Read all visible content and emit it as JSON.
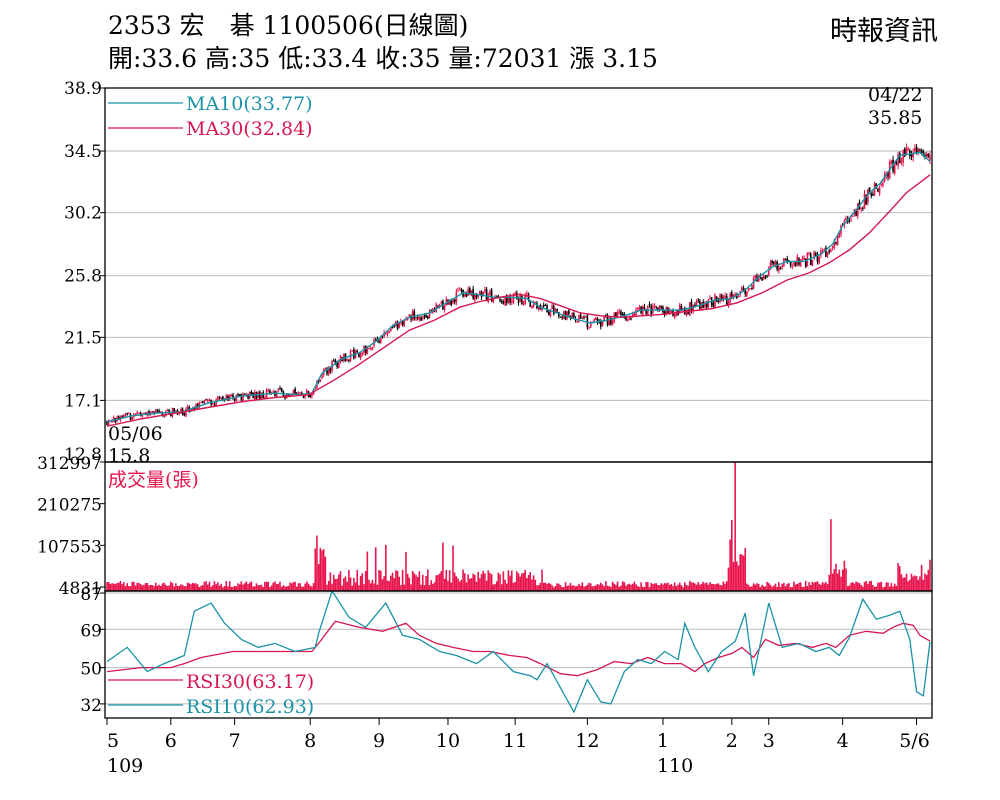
{
  "header": {
    "title": "2353  宏　碁 1100506(日線圖)",
    "ohlc": "開:33.6 高:35 低:33.4 收:35 量:72031 漲 3.15",
    "source": "時報資訊"
  },
  "colors": {
    "up": "#e8154d",
    "down": "#000000",
    "ma10": "#1a93a6",
    "ma30": "#d6174f",
    "grid": "#bbbbbb",
    "volume": "#e8154d"
  },
  "chart_data": [
    {
      "type": "candlestick",
      "panel": "price",
      "ylim": [
        12.8,
        38.9
      ],
      "yticks": [
        "38.9",
        "34.5",
        "30.2",
        "25.8",
        "21.5",
        "17.1",
        "12.8"
      ],
      "ma": [
        {
          "name": "MA10",
          "label": "MA10(33.77)",
          "color": "#1a93a6",
          "points": [
            [
              0,
              15.6
            ],
            [
              14,
              16.0
            ],
            [
              28,
              16.2
            ],
            [
              45,
              16.3
            ],
            [
              60,
              16.9
            ],
            [
              80,
              17.4
            ],
            [
              100,
              17.6
            ],
            [
              115,
              17.5
            ],
            [
              122,
              17.6
            ],
            [
              128,
              19.0
            ],
            [
              140,
              20.0
            ],
            [
              150,
              20.4
            ],
            [
              160,
              21.2
            ],
            [
              170,
              22.3
            ],
            [
              180,
              22.9
            ],
            [
              192,
              23.2
            ],
            [
              202,
              23.9
            ],
            [
              212,
              24.6
            ],
            [
              220,
              24.5
            ],
            [
              230,
              24.3
            ],
            [
              240,
              24.3
            ],
            [
              250,
              24.2
            ],
            [
              258,
              23.6
            ],
            [
              268,
              23.2
            ],
            [
              278,
              22.8
            ],
            [
              288,
              22.5
            ],
            [
              298,
              22.7
            ],
            [
              308,
              23.0
            ],
            [
              318,
              23.4
            ],
            [
              330,
              23.4
            ],
            [
              342,
              23.4
            ],
            [
              352,
              23.7
            ],
            [
              362,
              24.1
            ],
            [
              372,
              24.2
            ],
            [
              380,
              24.8
            ],
            [
              388,
              25.7
            ],
            [
              396,
              26.4
            ],
            [
              405,
              26.8
            ],
            [
              415,
              26.8
            ],
            [
              425,
              27.3
            ],
            [
              432,
              28.0
            ],
            [
              438,
              29.3
            ],
            [
              446,
              30.4
            ],
            [
              454,
              31.6
            ],
            [
              460,
              32.2
            ],
            [
              466,
              33.2
            ],
            [
              472,
              34.2
            ],
            [
              478,
              34.3
            ],
            [
              484,
              34.4
            ],
            [
              490,
              33.77
            ]
          ]
        },
        {
          "name": "MA30",
          "label": "MA30(32.84)",
          "color": "#d6174f",
          "points": [
            [
              0,
              15.3
            ],
            [
              20,
              15.8
            ],
            [
              40,
              16.2
            ],
            [
              60,
              16.6
            ],
            [
              80,
              17.0
            ],
            [
              100,
              17.3
            ],
            [
              120,
              17.5
            ],
            [
              135,
              18.5
            ],
            [
              150,
              19.6
            ],
            [
              165,
              20.8
            ],
            [
              180,
              22.0
            ],
            [
              195,
              22.7
            ],
            [
              210,
              23.6
            ],
            [
              222,
              24.0
            ],
            [
              234,
              24.3
            ],
            [
              246,
              24.5
            ],
            [
              258,
              24.2
            ],
            [
              270,
              23.7
            ],
            [
              282,
              23.2
            ],
            [
              294,
              23.0
            ],
            [
              306,
              22.9
            ],
            [
              318,
              23.0
            ],
            [
              330,
              23.1
            ],
            [
              345,
              23.3
            ],
            [
              360,
              23.5
            ],
            [
              375,
              23.9
            ],
            [
              390,
              24.6
            ],
            [
              405,
              25.5
            ],
            [
              418,
              26.0
            ],
            [
              430,
              26.7
            ],
            [
              442,
              27.6
            ],
            [
              454,
              28.8
            ],
            [
              466,
              30.3
            ],
            [
              476,
              31.6
            ],
            [
              484,
              32.3
            ],
            [
              490,
              32.84
            ]
          ]
        }
      ]
    },
    {
      "type": "bar",
      "panel": "volume",
      "name": "成交量(張)",
      "ylim": [
        0,
        312997
      ],
      "yticks": [
        "312997",
        "210275",
        "107553",
        "4831"
      ]
    },
    {
      "type": "line",
      "panel": "rsi",
      "ylim": [
        25,
        88
      ],
      "yticks": [
        "87",
        "69",
        "50",
        "32"
      ],
      "series": [
        {
          "name": "RSI30",
          "label": "RSI30(63.17)",
          "color": "#d6174f",
          "points": [
            [
              0,
              48
            ],
            [
              20,
              50
            ],
            [
              38,
              50
            ],
            [
              46,
              52
            ],
            [
              56,
              55
            ],
            [
              75,
              58
            ],
            [
              90,
              58
            ],
            [
              105,
              58
            ],
            [
              122,
              58
            ],
            [
              126,
              62
            ],
            [
              136,
              73
            ],
            [
              150,
              70
            ],
            [
              164,
              68
            ],
            [
              178,
              72
            ],
            [
              186,
              66
            ],
            [
              196,
              62
            ],
            [
              206,
              60
            ],
            [
              218,
              58
            ],
            [
              228,
              58
            ],
            [
              240,
              56
            ],
            [
              250,
              55
            ],
            [
              258,
              52
            ],
            [
              270,
              47
            ],
            [
              280,
              46
            ],
            [
              292,
              49
            ],
            [
              302,
              53
            ],
            [
              312,
              52
            ],
            [
              322,
              55
            ],
            [
              332,
              52
            ],
            [
              342,
              52
            ],
            [
              350,
              48
            ],
            [
              356,
              52
            ],
            [
              364,
              55
            ],
            [
              372,
              57
            ],
            [
              378,
              60
            ],
            [
              385,
              55
            ],
            [
              392,
              64
            ],
            [
              400,
              61
            ],
            [
              410,
              62
            ],
            [
              420,
              60
            ],
            [
              428,
              62
            ],
            [
              434,
              60
            ],
            [
              442,
              66
            ],
            [
              452,
              68
            ],
            [
              462,
              67
            ],
            [
              468,
              70
            ],
            [
              474,
              72
            ],
            [
              480,
              71
            ],
            [
              484,
              66
            ],
            [
              490,
              63.17
            ]
          ]
        },
        {
          "name": "RSI10",
          "label": "RSI10(62.93)",
          "color": "#1a93a6",
          "points": [
            [
              0,
              53
            ],
            [
              12,
              60
            ],
            [
              24,
              48
            ],
            [
              34,
              52
            ],
            [
              46,
              56
            ],
            [
              52,
              78
            ],
            [
              62,
              82
            ],
            [
              70,
              72
            ],
            [
              80,
              64
            ],
            [
              90,
              60
            ],
            [
              100,
              62
            ],
            [
              112,
              58
            ],
            [
              124,
              60
            ],
            [
              126,
              67
            ],
            [
              134,
              88
            ],
            [
              144,
              75
            ],
            [
              154,
              70
            ],
            [
              166,
              82
            ],
            [
              176,
              66
            ],
            [
              186,
              64
            ],
            [
              198,
              58
            ],
            [
              208,
              56
            ],
            [
              220,
              52
            ],
            [
              230,
              58
            ],
            [
              242,
              48
            ],
            [
              252,
              46
            ],
            [
              256,
              44
            ],
            [
              262,
              52
            ],
            [
              270,
              40
            ],
            [
              278,
              28
            ],
            [
              286,
              44
            ],
            [
              294,
              33
            ],
            [
              300,
              32
            ],
            [
              308,
              48
            ],
            [
              316,
              54
            ],
            [
              324,
              52
            ],
            [
              332,
              58
            ],
            [
              340,
              54
            ],
            [
              344,
              72
            ],
            [
              350,
              60
            ],
            [
              358,
              48
            ],
            [
              366,
              58
            ],
            [
              374,
              63
            ],
            [
              380,
              77
            ],
            [
              385,
              46
            ],
            [
              394,
              82
            ],
            [
              402,
              60
            ],
            [
              412,
              62
            ],
            [
              422,
              58
            ],
            [
              430,
              60
            ],
            [
              436,
              56
            ],
            [
              442,
              65
            ],
            [
              450,
              84
            ],
            [
              458,
              74
            ],
            [
              466,
              76
            ],
            [
              472,
              78
            ],
            [
              478,
              64
            ],
            [
              482,
              38
            ],
            [
              486,
              36
            ],
            [
              490,
              62.93
            ]
          ]
        }
      ]
    }
  ],
  "date_labels": {
    "start_date": "05/06",
    "start_low": "15.8",
    "high_date": "04/22",
    "high_value": "35.85"
  },
  "x_axis": {
    "months": [
      {
        "label": "5",
        "idx": 0
      },
      {
        "label": "6",
        "idx": 38
      },
      {
        "label": "7",
        "idx": 76
      },
      {
        "label": "8",
        "idx": 121
      },
      {
        "label": "9",
        "idx": 162
      },
      {
        "label": "10",
        "idx": 203
      },
      {
        "label": "11",
        "idx": 243
      },
      {
        "label": "12",
        "idx": 286
      },
      {
        "label": "1",
        "idx": 331
      },
      {
        "label": "2",
        "idx": 372
      },
      {
        "label": "3",
        "idx": 394
      },
      {
        "label": "4",
        "idx": 438
      },
      {
        "label": "5/6",
        "idx": 482
      }
    ],
    "years": [
      {
        "label": "109",
        "idx": 0
      },
      {
        "label": "110",
        "idx": 331
      }
    ]
  }
}
